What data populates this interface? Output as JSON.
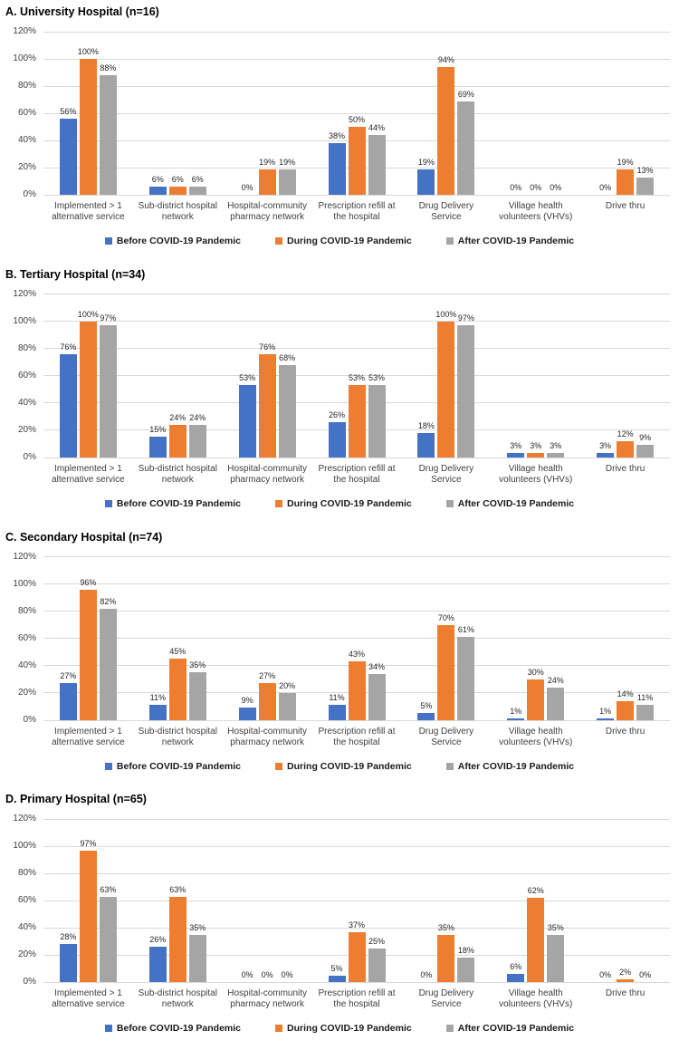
{
  "figure": {
    "background": "#ffffff",
    "y_tick_labels": [
      "0%",
      "20%",
      "40%",
      "60%",
      "80%",
      "100%",
      "120%"
    ]
  },
  "colors": {
    "before": "#4472C4",
    "during": "#ED7D31",
    "after": "#A5A5A5",
    "gridline": "#D9D9D9",
    "axis_text": "#404040",
    "value_text": "#262626",
    "title_text": "#000000"
  },
  "legend": {
    "items": [
      {
        "label": "Before COVID-19 Pandemic",
        "color": "#4472C4"
      },
      {
        "label": "During COVID-19 Pandemic",
        "color": "#ED7D31"
      },
      {
        "label": "After COVID-19 Pandemic",
        "color": "#A5A5A5"
      }
    ]
  },
  "chart_data": [
    {
      "type": "bar",
      "title": "A. University Hospital (n=16)",
      "categories": [
        "Implemented > 1 alternative service",
        "Sub-district hospital network",
        "Hospital-community pharmacy network",
        "Prescription refill at the hospital",
        "Drug Delivery Service",
        "Village health volunteers (VHVs)",
        "Drive thru"
      ],
      "series": [
        {
          "name": "Before COVID-19 Pandemic",
          "color": "#4472C4",
          "values": [
            56,
            6,
            0,
            38,
            19,
            0,
            0
          ]
        },
        {
          "name": "During COVID-19 Pandemic",
          "color": "#ED7D31",
          "values": [
            100,
            6,
            19,
            50,
            94,
            0,
            19
          ]
        },
        {
          "name": "After COVID-19 Pandemic",
          "color": "#A5A5A5",
          "values": [
            88,
            6,
            19,
            44,
            69,
            0,
            13
          ]
        }
      ],
      "ylim": [
        0,
        120
      ],
      "ytick_step": 20,
      "value_suffix": "%",
      "grid": true,
      "legend_position": "bottom"
    },
    {
      "type": "bar",
      "title": "B. Tertiary Hospital (n=34)",
      "categories": [
        "Implemented > 1 alternative service",
        "Sub-district hospital network",
        "Hospital-community pharmacy network",
        "Prescription refill at the hospital",
        "Drug Delivery Service",
        "Village health volunteers (VHVs)",
        "Drive thru"
      ],
      "series": [
        {
          "name": "Before COVID-19 Pandemic",
          "color": "#4472C4",
          "values": [
            76,
            15,
            53,
            26,
            18,
            3,
            3
          ]
        },
        {
          "name": "During COVID-19 Pandemic",
          "color": "#ED7D31",
          "values": [
            100,
            24,
            76,
            53,
            100,
            3,
            12
          ]
        },
        {
          "name": "After COVID-19 Pandemic",
          "color": "#A5A5A5",
          "values": [
            97,
            24,
            68,
            53,
            97,
            3,
            9
          ]
        }
      ],
      "ylim": [
        0,
        120
      ],
      "ytick_step": 20,
      "value_suffix": "%",
      "grid": true,
      "legend_position": "bottom"
    },
    {
      "type": "bar",
      "title": "C. Secondary Hospital (n=74)",
      "categories": [
        "Implemented > 1 alternative service",
        "Sub-district hospital network",
        "Hospital-community pharmacy network",
        "Prescription refill at the hospital",
        "Drug Delivery Service",
        "Village health volunteers (VHVs)",
        "Drive thru"
      ],
      "series": [
        {
          "name": "Before COVID-19 Pandemic",
          "color": "#4472C4",
          "values": [
            27,
            11,
            9,
            11,
            5,
            1,
            1
          ]
        },
        {
          "name": "During COVID-19 Pandemic",
          "color": "#ED7D31",
          "values": [
            96,
            45,
            27,
            43,
            70,
            30,
            14
          ]
        },
        {
          "name": "After COVID-19 Pandemic",
          "color": "#A5A5A5",
          "values": [
            82,
            35,
            20,
            34,
            61,
            24,
            11
          ]
        }
      ],
      "ylim": [
        0,
        120
      ],
      "ytick_step": 20,
      "value_suffix": "%",
      "grid": true,
      "legend_position": "bottom"
    },
    {
      "type": "bar",
      "title": "D. Primary Hospital (n=65)",
      "categories": [
        "Implemented > 1 alternative service",
        "Sub-district hospital network",
        "Hospital-community pharmacy network",
        "Prescription refill at the hospital",
        "Drug Delivery Service",
        "Village health volunteers (VHVs)",
        "Drive thru"
      ],
      "series": [
        {
          "name": "Before COVID-19 Pandemic",
          "color": "#4472C4",
          "values": [
            28,
            26,
            0,
            5,
            0,
            6,
            0
          ]
        },
        {
          "name": "During COVID-19 Pandemic",
          "color": "#ED7D31",
          "values": [
            97,
            63,
            0,
            37,
            35,
            62,
            2
          ]
        },
        {
          "name": "After COVID-19 Pandemic",
          "color": "#A5A5A5",
          "values": [
            63,
            35,
            0,
            25,
            18,
            35,
            0
          ]
        }
      ],
      "ylim": [
        0,
        120
      ],
      "ytick_step": 20,
      "value_suffix": "%",
      "grid": true,
      "legend_position": "bottom"
    }
  ]
}
